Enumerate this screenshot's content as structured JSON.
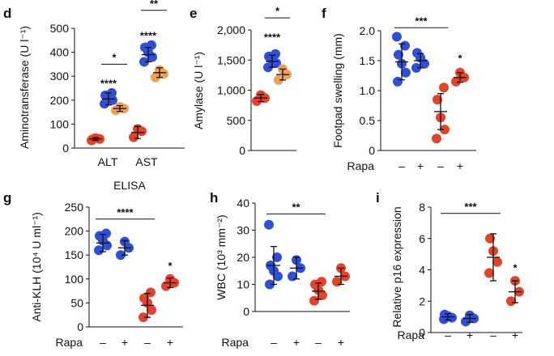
{
  "colors": {
    "blue": "#2f4fd6",
    "red": "#e2432b",
    "orange": "#f0a055"
  },
  "chart_data": [
    {
      "panel": "d",
      "type": "scatter",
      "ylabel": "Aminotransferase (U l⁻¹)",
      "ylim": [
        0,
        500
      ],
      "yticks": [
        0,
        100,
        200,
        300,
        400,
        500
      ],
      "categories": [
        "ALT",
        "AST"
      ],
      "groups": [
        {
          "category": "ALT",
          "color": "red",
          "mean": 38,
          "sd": 6,
          "points": [
            32,
            38,
            42,
            36
          ]
        },
        {
          "category": "ALT",
          "color": "blue",
          "mean": 205,
          "sd": 25,
          "points": [
            185,
            200,
            210,
            220,
            230
          ]
        },
        {
          "category": "ALT",
          "color": "orange",
          "mean": 165,
          "sd": 12,
          "points": [
            158,
            165,
            172
          ]
        },
        {
          "category": "AST",
          "color": "red",
          "mean": 65,
          "sd": 25,
          "points": [
            45,
            70,
            80
          ]
        },
        {
          "category": "AST",
          "color": "blue",
          "mean": 390,
          "sd": 30,
          "points": [
            360,
            380,
            400,
            420,
            430
          ]
        },
        {
          "category": "AST",
          "color": "orange",
          "mean": 315,
          "sd": 20,
          "points": [
            295,
            310,
            325
          ]
        }
      ],
      "annotations": [
        {
          "text": "****",
          "group": 1,
          "y": 255
        },
        {
          "text": "****",
          "group": 4,
          "y": 455
        },
        {
          "text": "*",
          "bracket": [
            1,
            2
          ],
          "y": 350
        },
        {
          "text": "**",
          "bracket": [
            4,
            5
          ],
          "y": 575
        }
      ]
    },
    {
      "panel": "e",
      "type": "scatter",
      "ylabel": "Amylase (U l⁻¹)",
      "ylim": [
        0,
        2000
      ],
      "yticks": [
        0,
        500,
        1000,
        1500,
        2000
      ],
      "ytick_labels": [
        "0",
        "500",
        "1,000",
        "1,500",
        "2,000"
      ],
      "groups": [
        {
          "color": "red",
          "mean": 870,
          "sd": 60,
          "points": [
            820,
            870,
            920
          ]
        },
        {
          "color": "blue",
          "mean": 1480,
          "sd": 100,
          "points": [
            1380,
            1450,
            1500,
            1560,
            1600
          ]
        },
        {
          "color": "orange",
          "mean": 1260,
          "sd": 90,
          "points": [
            1170,
            1260,
            1350
          ]
        }
      ],
      "annotations": [
        {
          "text": "****",
          "group": 1,
          "y": 1820
        },
        {
          "text": "*",
          "bracket": [
            1,
            2
          ],
          "y": 2200
        }
      ]
    },
    {
      "panel": "f",
      "type": "scatter",
      "ylabel": "Footpad swelling (mm)",
      "ylim": [
        0,
        2.0
      ],
      "yticks": [
        0,
        0.5,
        1.0,
        1.5,
        2.0
      ],
      "ytick_labels": [
        "0",
        "0.5",
        "1.0",
        "1.5",
        "2.0"
      ],
      "rapa_label": "Rapa",
      "x_labels": [
        "–",
        "+",
        "–",
        "+"
      ],
      "groups": [
        {
          "color": "blue",
          "mean": 1.48,
          "sd": 0.3,
          "points": [
            1.15,
            1.3,
            1.45,
            1.6,
            1.75,
            1.9
          ]
        },
        {
          "color": "blue",
          "mean": 1.5,
          "sd": 0.12,
          "points": [
            1.38,
            1.45,
            1.55,
            1.63
          ]
        },
        {
          "color": "red",
          "mean": 0.65,
          "sd": 0.3,
          "points": [
            0.2,
            0.35,
            0.55,
            0.85,
            1.05
          ]
        },
        {
          "color": "red",
          "mean": 1.22,
          "sd": 0.08,
          "points": [
            1.15,
            1.22,
            1.3
          ]
        }
      ],
      "annotations": [
        {
          "text": "***",
          "bracket": [
            0,
            2
          ],
          "y": 2.05
        },
        {
          "text": "*",
          "group": 3,
          "y": 1.48
        }
      ]
    },
    {
      "panel": "g",
      "type": "scatter",
      "title": "ELISA",
      "ylabel": "Anti-KLH (10⁴ U ml⁻¹)",
      "ylim": [
        0,
        250
      ],
      "yticks": [
        0,
        50,
        100,
        150,
        200,
        250
      ],
      "rapa_label": "Rapa",
      "x_labels": [
        "–",
        "+",
        "–",
        "+"
      ],
      "groups": [
        {
          "color": "blue",
          "mean": 175,
          "sd": 18,
          "points": [
            160,
            170,
            180,
            190,
            195
          ]
        },
        {
          "color": "blue",
          "mean": 165,
          "sd": 15,
          "points": [
            150,
            165,
            178
          ]
        },
        {
          "color": "red",
          "mean": 45,
          "sd": 25,
          "points": [
            20,
            35,
            50,
            60,
            72
          ]
        },
        {
          "color": "red",
          "mean": 92,
          "sd": 10,
          "points": [
            85,
            92,
            100
          ]
        }
      ],
      "annotations": [
        {
          "text": "****",
          "bracket": [
            0,
            2
          ],
          "y": 225
        },
        {
          "text": "*",
          "group": 3,
          "y": 120
        }
      ]
    },
    {
      "panel": "h",
      "type": "scatter",
      "ylabel": "WBC (10³ mm⁻²)",
      "ylim": [
        0,
        40
      ],
      "yticks": [
        0,
        10,
        20,
        30,
        40
      ],
      "rapa_label": "Rapa",
      "x_labels": [
        "–",
        "+",
        "–",
        "+"
      ],
      "groups": [
        {
          "color": "blue",
          "mean": 17,
          "sd": 7,
          "points": [
            10,
            13,
            15,
            17,
            20,
            32
          ]
        },
        {
          "color": "blue",
          "mean": 16,
          "sd": 4,
          "points": [
            13,
            16,
            19
          ]
        },
        {
          "color": "red",
          "mean": 7.5,
          "sd": 3,
          "points": [
            4,
            6,
            8,
            10,
            11
          ]
        },
        {
          "color": "red",
          "mean": 13,
          "sd": 3,
          "points": [
            11,
            13,
            16
          ]
        }
      ],
      "annotations": [
        {
          "text": "**",
          "bracket": [
            0,
            2
          ],
          "y": 36
        }
      ]
    },
    {
      "panel": "i",
      "type": "scatter",
      "ylabel": "Relative p16 expression",
      "ylim": [
        0,
        8
      ],
      "yticks": [
        0,
        2,
        4,
        6,
        8
      ],
      "rapa_label": "Rapa",
      "x_labels": [
        "–",
        "+",
        "–",
        "+"
      ],
      "groups": [
        {
          "color": "blue",
          "mean": 1.0,
          "sd": 0.2,
          "points": [
            0.85,
            0.95,
            1.05,
            1.15
          ]
        },
        {
          "color": "blue",
          "mean": 0.9,
          "sd": 0.25,
          "points": [
            0.7,
            0.9,
            1.1
          ]
        },
        {
          "color": "red",
          "mean": 4.8,
          "sd": 1.5,
          "points": [
            3.8,
            4.5,
            5.2,
            6.0
          ]
        },
        {
          "color": "red",
          "mean": 2.6,
          "sd": 0.7,
          "points": [
            2.0,
            2.6,
            3.3
          ]
        }
      ],
      "annotations": [
        {
          "text": "***",
          "bracket": [
            0,
            2
          ],
          "y": 7.6
        },
        {
          "text": "*",
          "group": 3,
          "y": 3.9
        }
      ]
    }
  ]
}
